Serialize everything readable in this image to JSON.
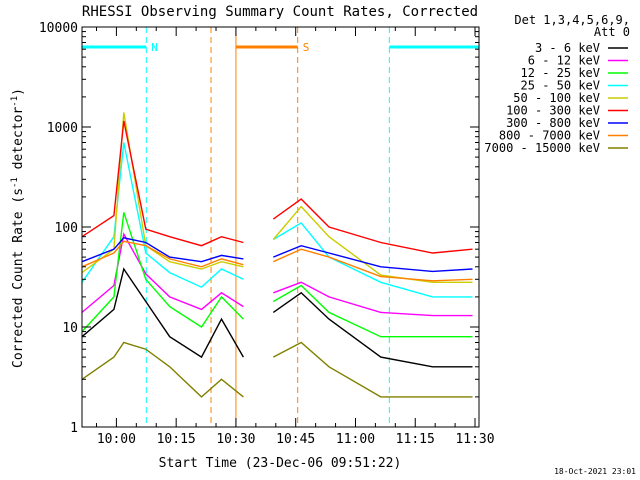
{
  "chart_data": {
    "type": "line",
    "title": "RHESSI Observing Summary Count Rates, Corrected",
    "xlabel": "Start Time (23-Dec-06 09:51:22)",
    "ylabel_main": "Corrected Count Rate (s",
    "ylabel_sup": "-1",
    "ylabel_mid": " detector",
    "ylabel_end": ")",
    "y_scale": "log",
    "ylim": [
      1,
      10000
    ],
    "xlim": [
      "09:51:22",
      "11:31:00"
    ],
    "x_ticks": [
      "10:00",
      "10:15",
      "10:30",
      "10:45",
      "11:00",
      "11:15",
      "11:30"
    ],
    "y_ticks": [
      "1",
      "10",
      "100",
      "1000",
      "10000"
    ],
    "legend_header": [
      "Det 1,3,4,5,6,9,",
      "Att 0"
    ],
    "legend_position": "top-right",
    "series": [
      {
        "name": "3 - 6 keV",
        "color": "#000000",
        "values": [
          8,
          15,
          38,
          18,
          8,
          5,
          12,
          5,
          0,
          0,
          14,
          22,
          12,
          5,
          4,
          4
        ]
      },
      {
        "name": "6 - 12 keV",
        "color": "#ff00ff",
        "values": [
          14,
          26,
          85,
          34,
          20,
          15,
          22,
          16,
          0,
          0,
          22,
          28,
          20,
          14,
          13,
          13
        ]
      },
      {
        "name": "12 - 25 keV",
        "color": "#00ff00",
        "values": [
          9,
          20,
          140,
          30,
          16,
          10,
          20,
          12,
          0,
          0,
          18,
          26,
          14,
          8,
          8,
          8
        ]
      },
      {
        "name": "25 - 50 keV",
        "color": "#00ffff",
        "values": [
          28,
          80,
          700,
          55,
          35,
          25,
          38,
          30,
          0,
          0,
          75,
          110,
          50,
          28,
          20,
          20
        ]
      },
      {
        "name": "50 - 100 keV",
        "color": "#cccc00",
        "values": [
          35,
          60,
          1400,
          65,
          45,
          38,
          45,
          40,
          0,
          0,
          75,
          160,
          80,
          33,
          28,
          28
        ]
      },
      {
        "name": "100 - 300 keV",
        "color": "#ff0000",
        "values": [
          80,
          130,
          1150,
          95,
          80,
          65,
          80,
          70,
          0,
          0,
          120,
          190,
          100,
          70,
          55,
          60
        ]
      },
      {
        "name": "300 - 800 keV",
        "color": "#0000ff",
        "values": [
          45,
          60,
          78,
          70,
          50,
          45,
          52,
          48,
          0,
          0,
          50,
          65,
          55,
          40,
          36,
          38
        ]
      },
      {
        "name": "800 - 7000 keV",
        "color": "#ff8000",
        "values": [
          40,
          55,
          72,
          65,
          48,
          40,
          48,
          42,
          0,
          0,
          45,
          60,
          50,
          32,
          29,
          30
        ]
      },
      {
        "name": "7000 - 15000 keV",
        "color": "#808000",
        "values": [
          3,
          5,
          7,
          6,
          4,
          2,
          3,
          2,
          0,
          0,
          5,
          7,
          4,
          2,
          2,
          2
        ]
      }
    ],
    "x_minutes": [
      0,
      8,
      10.5,
      16,
      22,
      30,
      35,
      40.5,
      40.6,
      47.4,
      48,
      55,
      62,
      75,
      88,
      98
    ],
    "annotations": [
      {
        "text": "N",
        "color": "#00ffff",
        "x_start": "09:51:22",
        "x_end": "10:07:30"
      },
      {
        "text": "S",
        "color": "#ff8000",
        "x_start": "10:30:00",
        "x_end": "10:45:30"
      },
      {
        "text": "",
        "color": "#00ffff",
        "x_start": "11:08:30",
        "x_end": "11:31:00"
      }
    ],
    "gaps": [
      {
        "color": "#00ffff",
        "x": "10:07:30"
      },
      {
        "color": "#ff8000",
        "x": "10:23:45"
      },
      {
        "color": "#ff8000",
        "x": "10:45:30"
      },
      {
        "color": "#00ffff",
        "x": "11:08:30"
      },
      {
        "color": "#00ffff",
        "x": "11:31:00"
      }
    ]
  },
  "footer": {
    "timestamp": "18-Oct-2021 23:01"
  }
}
